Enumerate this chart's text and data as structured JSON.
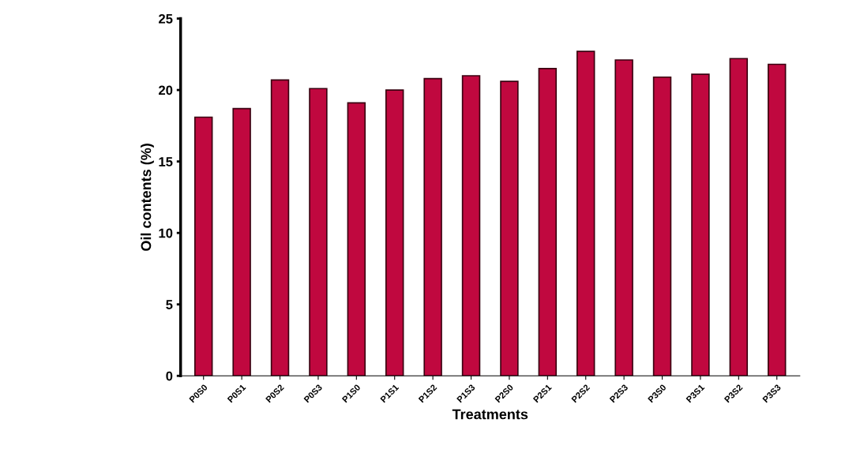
{
  "chart_data": {
    "type": "bar",
    "xlabel": "Treatments",
    "ylabel": "Oil contents (%)",
    "categories": [
      "P0S0",
      "P0S1",
      "P0S2",
      "P0S3",
      "P1S0",
      "P1S1",
      "P1S2",
      "P1S3",
      "P2S0",
      "P2S1",
      "P2S2",
      "P2S3",
      "P3S0",
      "P3S1",
      "P3S2",
      "P3S3"
    ],
    "values": [
      18.1,
      18.7,
      20.7,
      20.1,
      19.1,
      20.0,
      20.8,
      21.0,
      20.6,
      21.5,
      22.7,
      22.1,
      20.9,
      21.1,
      22.2,
      21.8
    ],
    "color": "#c0083f",
    "ylim": [
      0,
      25
    ],
    "yticks": [
      0,
      5,
      10,
      15,
      20,
      25
    ],
    "grid": false
  }
}
